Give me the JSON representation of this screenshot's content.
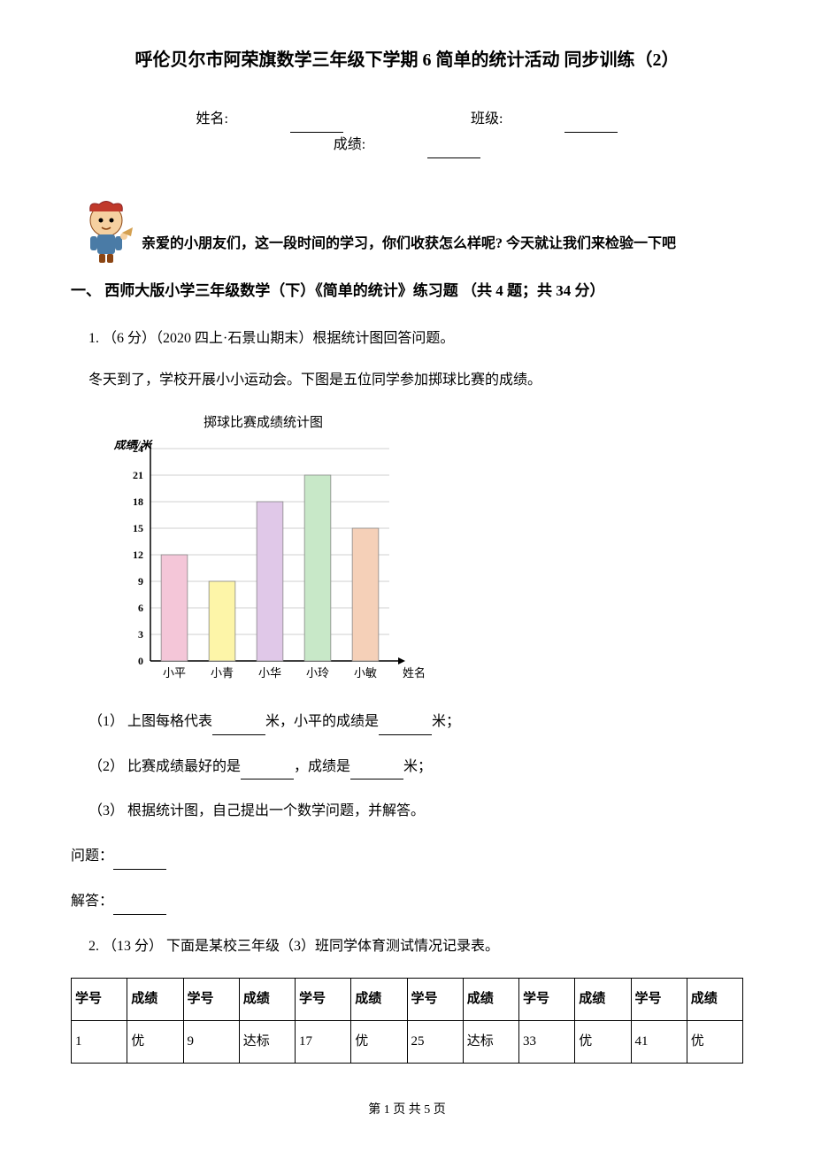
{
  "title": "呼伦贝尔市阿荣旗数学三年级下学期 6 简单的统计活动 同步训练（2）",
  "info": {
    "name_label": "姓名:",
    "class_label": "班级:",
    "score_label": "成绩:"
  },
  "intro": "亲爱的小朋友们，这一段时间的学习，你们收获怎么样呢? 今天就让我们来检验一下吧",
  "section_header": "一、 西师大版小学三年级数学（下）《简单的统计》练习题 （共 4 题；共 34 分）",
  "q1": {
    "prefix": "1. （6 分）（2020 四上·石景山期末）根据统计图回答问题。",
    "context": "冬天到了，学校开展小小运动会。下图是五位同学参加掷球比赛的成绩。",
    "chart": {
      "title": "掷球比赛成绩统计图",
      "y_axis_label": "成绩/米",
      "x_axis_label": "姓名",
      "categories": [
        "小平",
        "小青",
        "小华",
        "小玲",
        "小敏"
      ],
      "values": [
        12,
        9,
        18,
        21,
        15
      ],
      "bar_colors": [
        "#f4c6d8",
        "#fdf5a8",
        "#e0c8e8",
        "#c8e8c8",
        "#f5d0b8"
      ],
      "y_ticks": [
        0,
        3,
        6,
        9,
        12,
        15,
        18,
        21,
        24
      ],
      "grid_color": "#a0a0a0",
      "axis_color": "#000000",
      "background": "#ffffff",
      "bar_border": "#888888"
    },
    "sub1_a": "（1） 上图每格代表",
    "sub1_b": "米，小平的成绩是",
    "sub1_c": "米；",
    "sub2_a": "（2） 比赛成绩最好的是",
    "sub2_b": "，成绩是",
    "sub2_c": "米；",
    "sub3": "（3） 根据统计图，自己提出一个数学问题，并解答。",
    "problem_label": "问题：",
    "answer_label": "解答："
  },
  "q2": {
    "prefix": "2. （13 分） 下面是某校三年级（3）班同学体育测试情况记录表。",
    "table": {
      "headers": [
        "学号",
        "成绩",
        "学号",
        "成绩",
        "学号",
        "成绩",
        "学号",
        "成绩",
        "学号",
        "成绩",
        "学号",
        "成绩"
      ],
      "row1": [
        "1",
        "优",
        "9",
        "达标",
        "17",
        "优",
        "25",
        "达标",
        "33",
        "优",
        "41",
        "优"
      ]
    }
  },
  "footer": "第 1 页 共 5 页"
}
